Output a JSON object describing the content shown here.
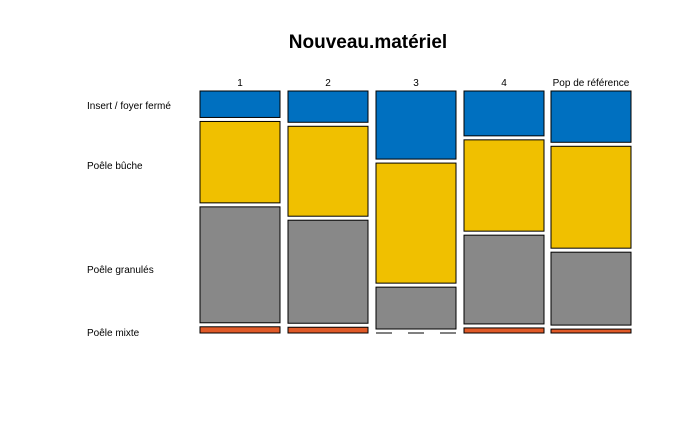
{
  "chart_data": {
    "type": "mosaic",
    "title": "Nouveau.matériel",
    "columns": [
      "1",
      "2",
      "3",
      "4",
      "Pop de référence"
    ],
    "rows": [
      "Insert / foyer fermé",
      "Poêle bûche",
      "Poêle granulés",
      "Poêle mixte"
    ],
    "colors": [
      "#0070C0",
      "#F0C000",
      "#888888",
      "#E05A28"
    ],
    "proportions": [
      [
        0.115,
        0.354,
        0.504,
        0.027
      ],
      [
        0.136,
        0.391,
        0.448,
        0.025
      ],
      [
        0.296,
        0.522,
        0.182,
        0.0
      ],
      [
        0.195,
        0.397,
        0.386,
        0.022
      ],
      [
        0.223,
        0.443,
        0.317,
        0.017
      ]
    ]
  }
}
